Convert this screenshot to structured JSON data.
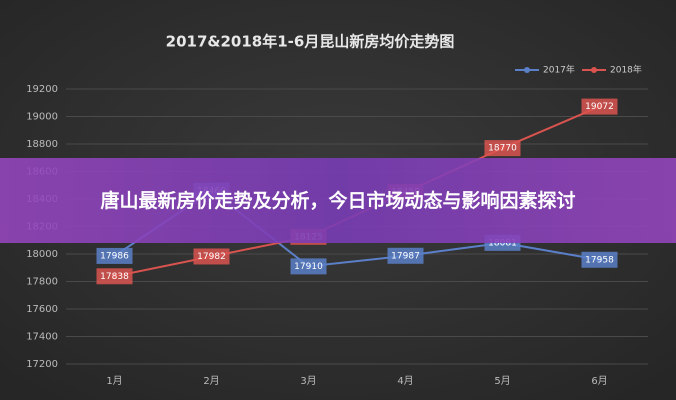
{
  "chart_data": {
    "type": "line",
    "title": "2017&2018年1-6月昆山新房均价走势图",
    "categories": [
      "1月",
      "2月",
      "3月",
      "4月",
      "5月",
      "6月"
    ],
    "series": [
      {
        "name": "2017年",
        "color": "#5b7fc8",
        "values": [
          17986,
          18460,
          17910,
          17987,
          18081,
          17958
        ]
      },
      {
        "name": "2018年",
        "color": "#d9534f",
        "values": [
          17838,
          17982,
          18125,
          18450,
          18770,
          19072
        ]
      }
    ],
    "ylim": [
      17200,
      19200
    ],
    "yticks": [
      17200,
      17400,
      17600,
      17800,
      18000,
      18200,
      18400,
      18600,
      18800,
      19000,
      19200
    ],
    "grid": true,
    "legend": "top-right"
  },
  "banner": {
    "title": "唐山最新房价走势及分析，今日市场动态与影响因素探讨"
  }
}
